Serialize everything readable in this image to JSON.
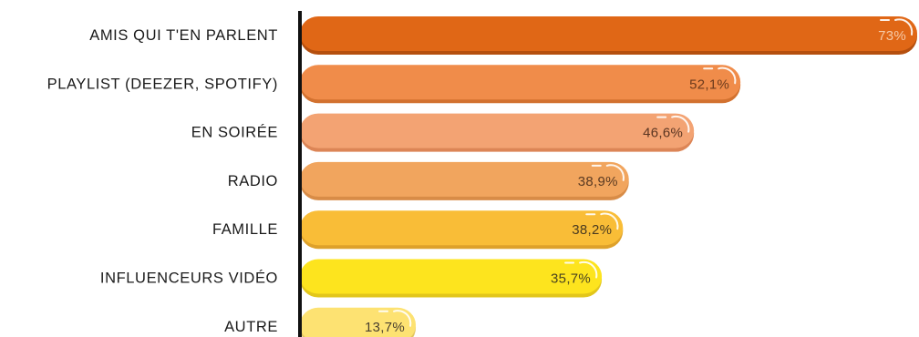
{
  "chart_data": {
    "type": "bar",
    "orientation": "horizontal",
    "title": "",
    "xlabel": "",
    "ylabel": "",
    "categories": [
      "AMIS QUI T'EN PARLENT",
      "PLAYLIST (DEEZER, SPOTIFY)",
      "EN SOIRÉE",
      "RADIO",
      "FAMILLE",
      "INFLUENCEURS VIDÉO",
      "AUTRE"
    ],
    "values": [
      73,
      52.1,
      46.6,
      38.9,
      38.2,
      35.7,
      13.7
    ],
    "value_labels": [
      "73%",
      "52,1%",
      "46,6%",
      "38,9%",
      "38,2%",
      "35,7%",
      "13,7%"
    ],
    "xlim": [
      0,
      73
    ],
    "grid": false,
    "legend": "none",
    "colors": [
      "#e06716",
      "#f08c4a",
      "#f3a373",
      "#f1a55e",
      "#f9bd37",
      "#fde41e",
      "#fde272"
    ],
    "shadow_colors": [
      "#b54f0e",
      "#d2712f",
      "#dc8556",
      "#d88c47",
      "#dea12a",
      "#e2c61b",
      "#e3c55f"
    ],
    "value_label_colors": [
      "#f6c9a6",
      "#6b3a1c",
      "#5a3522",
      "#5a3a22",
      "#4a3a20",
      "#4a4420",
      "#4a4030"
    ]
  }
}
